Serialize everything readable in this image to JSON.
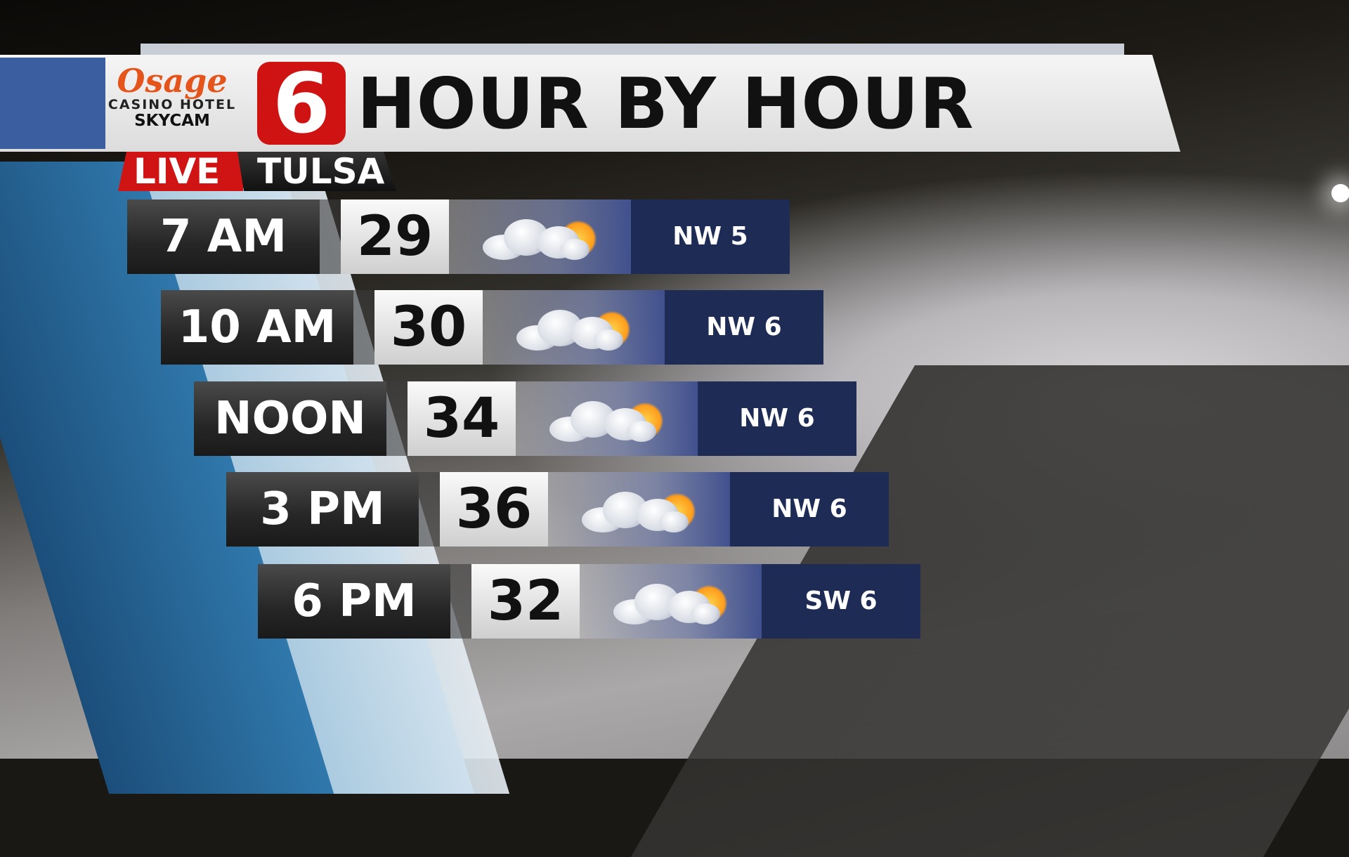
{
  "header": {
    "sponsor": {
      "name": "Osage",
      "line1": "CASINO HOTEL",
      "line2": "SKYCAM"
    },
    "station_logo": "6",
    "title": "HOUR BY HOUR"
  },
  "badges": {
    "live": "LIVE",
    "city": "TULSA"
  },
  "forecast": [
    {
      "time": "7 AM",
      "temp": "29",
      "icon": "partly-cloudy-icon",
      "wind": "NW 5"
    },
    {
      "time": "10 AM",
      "temp": "30",
      "icon": "partly-cloudy-icon",
      "wind": "NW 6"
    },
    {
      "time": "NOON",
      "temp": "34",
      "icon": "partly-cloudy-icon",
      "wind": "NW 6"
    },
    {
      "time": "3 PM",
      "temp": "36",
      "icon": "partly-cloudy-icon",
      "wind": "NW 6"
    },
    {
      "time": "6 PM",
      "temp": "32",
      "icon": "partly-cloudy-icon",
      "wind": "SW 6"
    }
  ],
  "colors": {
    "live_red": "#d01414",
    "wind_navy": "#1e2c55",
    "logo_red": "#cf1313"
  }
}
